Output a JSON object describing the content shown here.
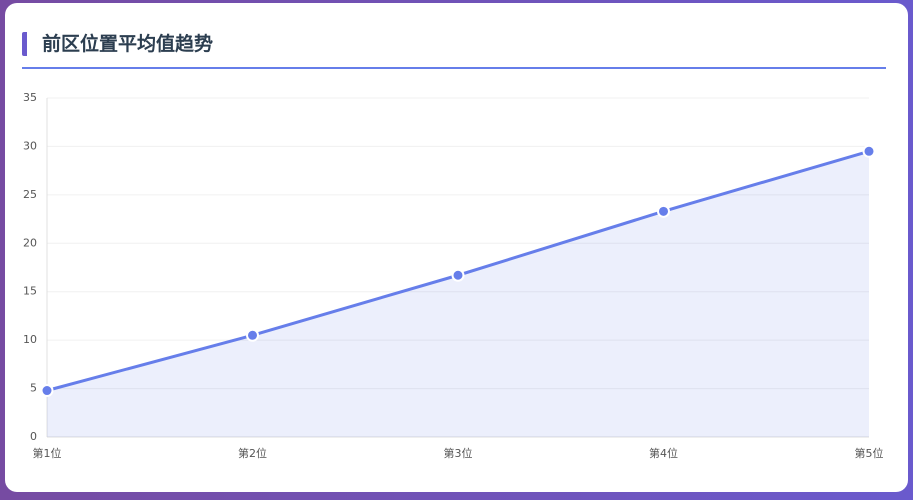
{
  "header": {
    "title": "前区位置平均值趋势"
  },
  "chart_data": {
    "type": "line",
    "categories": [
      "第1位",
      "第2位",
      "第3位",
      "第4位",
      "第5位"
    ],
    "series": [
      {
        "name": "前区位置平均值",
        "color": "#667eea",
        "values": [
          4.8,
          10.5,
          16.7,
          23.3,
          29.5
        ]
      }
    ],
    "ylim": [
      0,
      35
    ],
    "yticks": [
      0,
      5,
      10,
      15,
      20,
      25,
      30,
      35
    ],
    "grid": true,
    "area": true
  }
}
